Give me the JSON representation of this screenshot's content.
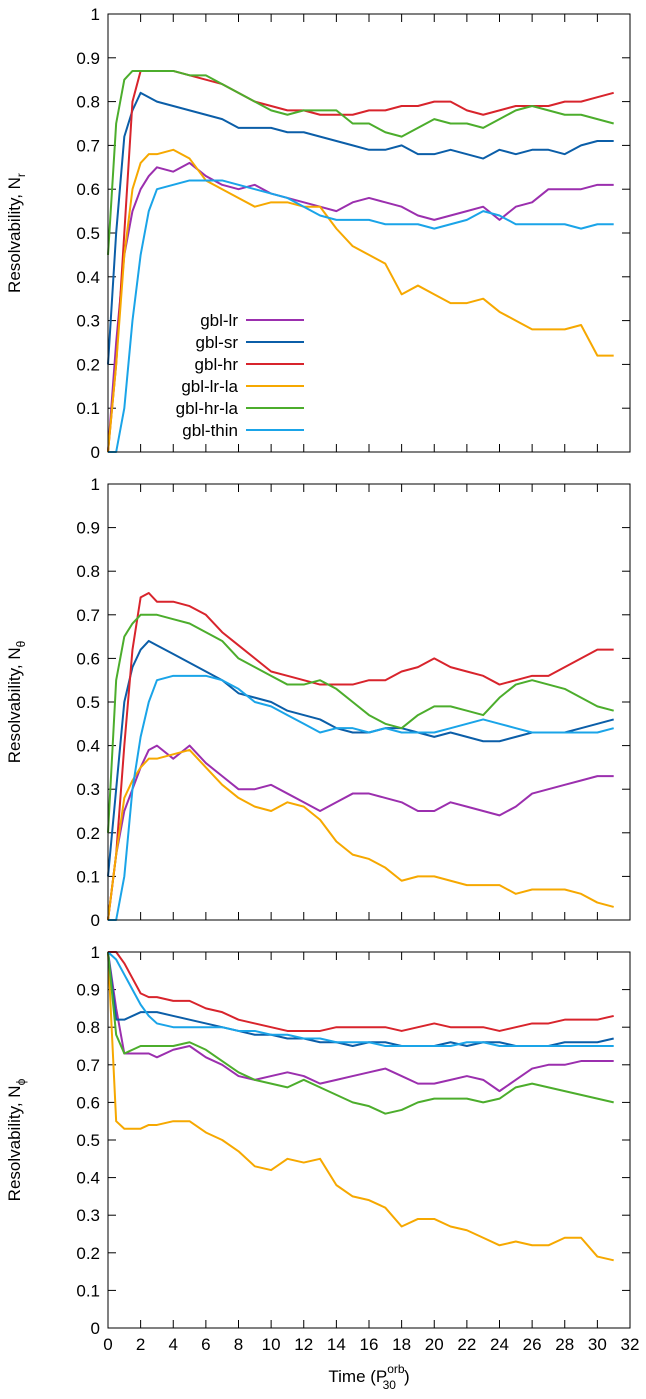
{
  "chart_data": [
    {
      "type": "line",
      "ylabel": "Resolvability, N",
      "ylabel_subscript": "r",
      "legend": "lower left",
      "xtick_labels": false,
      "xlim": [
        0,
        32
      ],
      "xticks": [
        0,
        2,
        4,
        6,
        8,
        10,
        12,
        14,
        16,
        18,
        20,
        22,
        24,
        26,
        28,
        30,
        32
      ],
      "ylim": [
        0,
        1
      ],
      "yticks": [
        0,
        0.1,
        0.2,
        0.3,
        0.4,
        0.5,
        0.6,
        0.7,
        0.8,
        0.9,
        1
      ],
      "x": [
        0,
        0.5,
        1,
        1.5,
        2,
        2.5,
        3,
        4,
        5,
        6,
        7,
        8,
        9,
        10,
        11,
        12,
        13,
        14,
        15,
        16,
        17,
        18,
        19,
        20,
        21,
        22,
        23,
        24,
        25,
        26,
        27,
        28,
        29,
        30,
        31
      ],
      "series": [
        {
          "name": "gbl-lr",
          "color": "#9b2fae",
          "values": [
            0,
            0.25,
            0.45,
            0.55,
            0.6,
            0.63,
            0.65,
            0.64,
            0.66,
            0.63,
            0.61,
            0.6,
            0.61,
            0.59,
            0.58,
            0.57,
            0.56,
            0.55,
            0.57,
            0.58,
            0.57,
            0.56,
            0.54,
            0.53,
            0.54,
            0.55,
            0.56,
            0.53,
            0.56,
            0.57,
            0.6,
            0.6,
            0.6,
            0.61,
            0.61
          ]
        },
        {
          "name": "gbl-sr",
          "color": "#0b5ea8",
          "values": [
            0.2,
            0.5,
            0.72,
            0.78,
            0.82,
            0.81,
            0.8,
            0.79,
            0.78,
            0.77,
            0.76,
            0.74,
            0.74,
            0.74,
            0.73,
            0.73,
            0.72,
            0.71,
            0.7,
            0.69,
            0.69,
            0.7,
            0.68,
            0.68,
            0.69,
            0.68,
            0.67,
            0.69,
            0.68,
            0.69,
            0.69,
            0.68,
            0.7,
            0.71,
            0.71
          ]
        },
        {
          "name": "gbl-hr",
          "color": "#d8242c",
          "values": [
            0,
            0.2,
            0.5,
            0.8,
            0.87,
            0.87,
            0.87,
            0.87,
            0.86,
            0.85,
            0.84,
            0.82,
            0.8,
            0.79,
            0.78,
            0.78,
            0.77,
            0.77,
            0.77,
            0.78,
            0.78,
            0.79,
            0.79,
            0.8,
            0.8,
            0.78,
            0.77,
            0.78,
            0.79,
            0.79,
            0.79,
            0.8,
            0.8,
            0.81,
            0.82
          ]
        },
        {
          "name": "gbl-lr-la",
          "color": "#f6a800",
          "values": [
            0,
            0.2,
            0.45,
            0.6,
            0.66,
            0.68,
            0.68,
            0.69,
            0.67,
            0.62,
            0.6,
            0.58,
            0.56,
            0.57,
            0.57,
            0.56,
            0.56,
            0.51,
            0.47,
            0.45,
            0.43,
            0.36,
            0.38,
            0.36,
            0.34,
            0.34,
            0.35,
            0.32,
            0.3,
            0.28,
            0.28,
            0.28,
            0.29,
            0.22,
            0.22
          ]
        },
        {
          "name": "gbl-hr-la",
          "color": "#4cad2c",
          "values": [
            0.45,
            0.75,
            0.85,
            0.87,
            0.87,
            0.87,
            0.87,
            0.87,
            0.86,
            0.86,
            0.84,
            0.82,
            0.8,
            0.78,
            0.77,
            0.78,
            0.78,
            0.78,
            0.75,
            0.75,
            0.73,
            0.72,
            0.74,
            0.76,
            0.75,
            0.75,
            0.74,
            0.76,
            0.78,
            0.79,
            0.78,
            0.77,
            0.77,
            0.76,
            0.75
          ]
        },
        {
          "name": "gbl-thin",
          "color": "#1aa4e8",
          "values": [
            0,
            0,
            0.1,
            0.3,
            0.45,
            0.55,
            0.6,
            0.61,
            0.62,
            0.62,
            0.62,
            0.61,
            0.6,
            0.59,
            0.58,
            0.56,
            0.54,
            0.53,
            0.53,
            0.53,
            0.52,
            0.52,
            0.52,
            0.51,
            0.52,
            0.53,
            0.55,
            0.54,
            0.52,
            0.52,
            0.52,
            0.52,
            0.51,
            0.52,
            0.52
          ]
        }
      ]
    },
    {
      "type": "line",
      "ylabel": "Resolvability, N",
      "ylabel_subscript": "θ",
      "xtick_labels": false,
      "xlim": [
        0,
        32
      ],
      "xticks": [
        0,
        2,
        4,
        6,
        8,
        10,
        12,
        14,
        16,
        18,
        20,
        22,
        24,
        26,
        28,
        30,
        32
      ],
      "ylim": [
        0,
        1
      ],
      "yticks": [
        0,
        0.1,
        0.2,
        0.3,
        0.4,
        0.5,
        0.6,
        0.7,
        0.8,
        0.9,
        1
      ],
      "x": [
        0,
        0.5,
        1,
        1.5,
        2,
        2.5,
        3,
        4,
        5,
        6,
        7,
        8,
        9,
        10,
        11,
        12,
        13,
        14,
        15,
        16,
        17,
        18,
        19,
        20,
        21,
        22,
        23,
        24,
        25,
        26,
        27,
        28,
        29,
        30,
        31
      ],
      "series": [
        {
          "color": "#9b2fae",
          "values": [
            0,
            0.15,
            0.25,
            0.3,
            0.35,
            0.39,
            0.4,
            0.37,
            0.4,
            0.36,
            0.33,
            0.3,
            0.3,
            0.31,
            0.29,
            0.27,
            0.25,
            0.27,
            0.29,
            0.29,
            0.28,
            0.27,
            0.25,
            0.25,
            0.27,
            0.26,
            0.25,
            0.24,
            0.26,
            0.29,
            0.3,
            0.31,
            0.32,
            0.33,
            0.33
          ]
        },
        {
          "color": "#0b5ea8",
          "values": [
            0.1,
            0.3,
            0.5,
            0.58,
            0.62,
            0.64,
            0.63,
            0.61,
            0.59,
            0.57,
            0.55,
            0.52,
            0.51,
            0.5,
            0.48,
            0.47,
            0.46,
            0.44,
            0.43,
            0.43,
            0.44,
            0.44,
            0.43,
            0.42,
            0.43,
            0.42,
            0.41,
            0.41,
            0.42,
            0.43,
            0.43,
            0.43,
            0.44,
            0.45,
            0.46
          ]
        },
        {
          "color": "#d8242c",
          "values": [
            0,
            0.15,
            0.4,
            0.62,
            0.74,
            0.75,
            0.73,
            0.73,
            0.72,
            0.7,
            0.66,
            0.63,
            0.6,
            0.57,
            0.56,
            0.55,
            0.54,
            0.54,
            0.54,
            0.55,
            0.55,
            0.57,
            0.58,
            0.6,
            0.58,
            0.57,
            0.56,
            0.54,
            0.55,
            0.56,
            0.56,
            0.58,
            0.6,
            0.62,
            0.62
          ]
        },
        {
          "color": "#f6a800",
          "values": [
            0,
            0.15,
            0.28,
            0.32,
            0.35,
            0.37,
            0.37,
            0.38,
            0.39,
            0.35,
            0.31,
            0.28,
            0.26,
            0.25,
            0.27,
            0.26,
            0.23,
            0.18,
            0.15,
            0.14,
            0.12,
            0.09,
            0.1,
            0.1,
            0.09,
            0.08,
            0.08,
            0.08,
            0.06,
            0.07,
            0.07,
            0.07,
            0.06,
            0.04,
            0.03
          ]
        },
        {
          "color": "#4cad2c",
          "values": [
            0.2,
            0.55,
            0.65,
            0.68,
            0.7,
            0.7,
            0.7,
            0.69,
            0.68,
            0.66,
            0.64,
            0.6,
            0.58,
            0.56,
            0.54,
            0.54,
            0.55,
            0.53,
            0.5,
            0.47,
            0.45,
            0.44,
            0.47,
            0.49,
            0.49,
            0.48,
            0.47,
            0.51,
            0.54,
            0.55,
            0.54,
            0.53,
            0.51,
            0.49,
            0.48
          ]
        },
        {
          "color": "#1aa4e8",
          "values": [
            0,
            0,
            0.1,
            0.3,
            0.42,
            0.5,
            0.55,
            0.56,
            0.56,
            0.56,
            0.55,
            0.53,
            0.5,
            0.49,
            0.47,
            0.45,
            0.43,
            0.44,
            0.44,
            0.43,
            0.44,
            0.43,
            0.43,
            0.43,
            0.44,
            0.45,
            0.46,
            0.45,
            0.44,
            0.43,
            0.43,
            0.43,
            0.43,
            0.43,
            0.44
          ]
        }
      ]
    },
    {
      "type": "line",
      "ylabel": "Resolvability, N",
      "ylabel_subscript": "ϕ",
      "xtick_labels": true,
      "xlabel": [
        "Time (P",
        "orb",
        "30",
        ")"
      ],
      "xlim": [
        0,
        32
      ],
      "xticks": [
        0,
        2,
        4,
        6,
        8,
        10,
        12,
        14,
        16,
        18,
        20,
        22,
        24,
        26,
        28,
        30,
        32
      ],
      "ylim": [
        0,
        1
      ],
      "yticks": [
        0,
        0.1,
        0.2,
        0.3,
        0.4,
        0.5,
        0.6,
        0.7,
        0.8,
        0.9,
        1
      ],
      "x": [
        0,
        0.5,
        1,
        1.5,
        2,
        2.5,
        3,
        4,
        5,
        6,
        7,
        8,
        9,
        10,
        11,
        12,
        13,
        14,
        15,
        16,
        17,
        18,
        19,
        20,
        21,
        22,
        23,
        24,
        25,
        26,
        27,
        28,
        29,
        30,
        31
      ],
      "series": [
        {
          "color": "#9b2fae",
          "values": [
            1,
            0.85,
            0.73,
            0.73,
            0.73,
            0.73,
            0.72,
            0.74,
            0.75,
            0.72,
            0.7,
            0.67,
            0.66,
            0.67,
            0.68,
            0.67,
            0.65,
            0.66,
            0.67,
            0.68,
            0.69,
            0.67,
            0.65,
            0.65,
            0.66,
            0.67,
            0.66,
            0.63,
            0.66,
            0.69,
            0.7,
            0.7,
            0.71,
            0.71,
            0.71
          ]
        },
        {
          "color": "#0b5ea8",
          "values": [
            1,
            0.82,
            0.82,
            0.83,
            0.84,
            0.84,
            0.84,
            0.83,
            0.82,
            0.81,
            0.8,
            0.79,
            0.78,
            0.78,
            0.77,
            0.77,
            0.76,
            0.76,
            0.75,
            0.76,
            0.76,
            0.75,
            0.75,
            0.75,
            0.76,
            0.75,
            0.76,
            0.76,
            0.75,
            0.75,
            0.75,
            0.76,
            0.76,
            0.76,
            0.77
          ]
        },
        {
          "color": "#d8242c",
          "values": [
            1,
            1,
            0.97,
            0.93,
            0.89,
            0.88,
            0.88,
            0.87,
            0.87,
            0.85,
            0.84,
            0.82,
            0.81,
            0.8,
            0.79,
            0.79,
            0.79,
            0.8,
            0.8,
            0.8,
            0.8,
            0.79,
            0.8,
            0.81,
            0.8,
            0.8,
            0.8,
            0.79,
            0.8,
            0.81,
            0.81,
            0.82,
            0.82,
            0.82,
            0.83
          ]
        },
        {
          "color": "#f6a800",
          "values": [
            1,
            0.55,
            0.53,
            0.53,
            0.53,
            0.54,
            0.54,
            0.55,
            0.55,
            0.52,
            0.5,
            0.47,
            0.43,
            0.42,
            0.45,
            0.44,
            0.45,
            0.38,
            0.35,
            0.34,
            0.32,
            0.27,
            0.29,
            0.29,
            0.27,
            0.26,
            0.24,
            0.22,
            0.23,
            0.22,
            0.22,
            0.24,
            0.24,
            0.19,
            0.18
          ]
        },
        {
          "color": "#4cad2c",
          "values": [
            1,
            0.78,
            0.73,
            0.74,
            0.75,
            0.75,
            0.75,
            0.75,
            0.76,
            0.74,
            0.71,
            0.68,
            0.66,
            0.65,
            0.64,
            0.66,
            0.64,
            0.62,
            0.6,
            0.59,
            0.57,
            0.58,
            0.6,
            0.61,
            0.61,
            0.61,
            0.6,
            0.61,
            0.64,
            0.65,
            0.64,
            0.63,
            0.62,
            0.61,
            0.6
          ]
        },
        {
          "color": "#1aa4e8",
          "values": [
            1,
            0.98,
            0.94,
            0.9,
            0.86,
            0.83,
            0.81,
            0.8,
            0.8,
            0.8,
            0.8,
            0.79,
            0.79,
            0.78,
            0.78,
            0.77,
            0.77,
            0.76,
            0.76,
            0.76,
            0.75,
            0.75,
            0.75,
            0.75,
            0.75,
            0.76,
            0.76,
            0.75,
            0.75,
            0.75,
            0.75,
            0.75,
            0.75,
            0.75,
            0.75
          ]
        }
      ]
    }
  ]
}
